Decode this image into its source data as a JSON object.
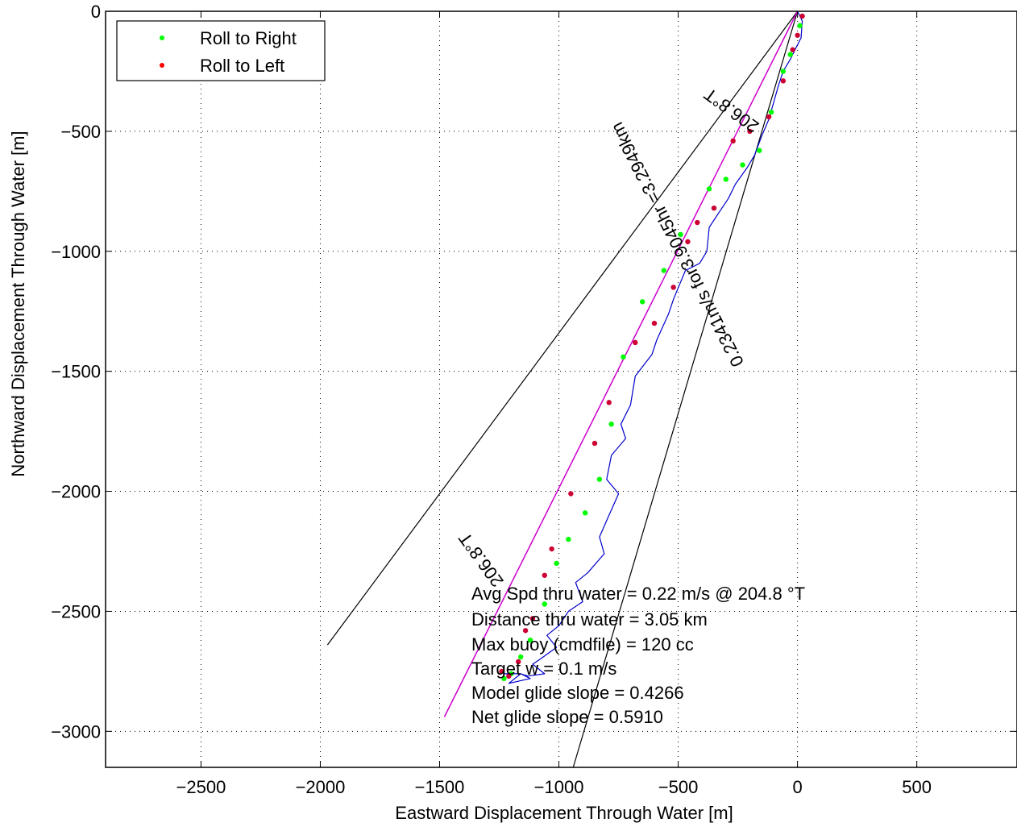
{
  "chart_data": {
    "type": "line",
    "xlabel": "Eastward Displacement Through Water [m]",
    "ylabel": "Northward Displacement Through Water [m]",
    "xlim": [
      -2900,
      920
    ],
    "ylim": [
      -3150,
      0
    ],
    "xticks": [
      -2500,
      -2000,
      -1500,
      -1000,
      -500,
      0,
      500
    ],
    "yticks": [
      0,
      -500,
      -1000,
      -1500,
      -2000,
      -2500,
      -3000
    ],
    "grid": true,
    "legend": {
      "placement": "top-left",
      "entries": [
        {
          "label": "Roll to Right",
          "color": "#00ff00"
        },
        {
          "label": "Roll to Left",
          "color": "#ff0000"
        }
      ]
    },
    "series": [
      {
        "name": "track",
        "color": "#0000cc",
        "x": [
          0,
          20,
          15,
          -5,
          -30,
          -60,
          -80,
          -100,
          -120,
          -150,
          -180,
          -210,
          -260,
          -290,
          -330,
          -370,
          -380,
          -410,
          -470,
          -520,
          -540,
          -590,
          -610,
          -680,
          -700,
          -740,
          -720,
          -780,
          -800,
          -750,
          -790,
          -830,
          -810,
          -880,
          -930,
          -900,
          -960,
          -1000,
          -1050,
          -1010,
          -1080,
          -1110,
          -1060,
          -1130,
          -1160,
          -1120,
          -1210,
          -1160,
          -1230
        ],
        "y": [
          0,
          -40,
          -110,
          -150,
          -200,
          -250,
          -310,
          -380,
          -450,
          -520,
          -600,
          -650,
          -720,
          -780,
          -840,
          -900,
          -1000,
          -1050,
          -1080,
          -1200,
          -1260,
          -1370,
          -1430,
          -1520,
          -1640,
          -1720,
          -1780,
          -1850,
          -1950,
          -2010,
          -2100,
          -2190,
          -2260,
          -2340,
          -2380,
          -2460,
          -2500,
          -2560,
          -2600,
          -2650,
          -2700,
          -2720,
          -2760,
          -2770,
          -2760,
          -2780,
          -2800,
          -2760,
          -2760
        ]
      },
      {
        "name": "heading",
        "color": "#cc00cc",
        "x": [
          0,
          -1480
        ],
        "y": [
          0,
          -2940
        ]
      }
    ],
    "rays": [
      {
        "x": [
          0,
          -1970
        ],
        "y": [
          0,
          -2640
        ]
      },
      {
        "x": [
          0,
          -940
        ],
        "y": [
          0,
          -3150
        ]
      }
    ],
    "roll_right_points": {
      "x": [
        10,
        -30,
        -60,
        -110,
        -160,
        -230,
        -300,
        -370,
        -490,
        -560,
        -650,
        -730,
        -780,
        -830,
        -890,
        -960,
        -1010,
        -1060,
        -1120,
        -1160,
        -1200,
        -1230
      ],
      "y": [
        -60,
        -180,
        -250,
        -420,
        -580,
        -640,
        -700,
        -740,
        -930,
        -1080,
        -1210,
        -1440,
        -1720,
        -1950,
        -2090,
        -2200,
        -2300,
        -2470,
        -2620,
        -2690,
        -2760,
        -2780
      ]
    },
    "roll_left_points": {
      "x": [
        20,
        0,
        -20,
        -60,
        -120,
        -200,
        -270,
        -350,
        -420,
        -460,
        -520,
        -600,
        -680,
        -790,
        -850,
        -950,
        -1030,
        -1060,
        -1110,
        -1140,
        -1170,
        -1210,
        -1240
      ],
      "y": [
        -20,
        -100,
        -160,
        -290,
        -440,
        -500,
        -540,
        -820,
        -880,
        -960,
        -1150,
        -1300,
        -1380,
        -1630,
        -1800,
        -2010,
        -2240,
        -2350,
        -2530,
        -2580,
        -2710,
        -2770,
        -2750
      ]
    },
    "annotations": {
      "ray_label_top": "206.8°T",
      "ray_label_bottom": "206.8°T",
      "heading_label": "0.2341m/s for3.9045hr =3.2949km",
      "stats": [
        "Avg Spd thru water =  0.22 m/s @ 204.8   °T",
        "Distance thru water =  3.05 km",
        "Max buoy (cmdfile) = 120 cc",
        "Target w = 0.1 m/s",
        "Model glide slope = 0.4266",
        "Net glide slope = 0.5910"
      ]
    }
  }
}
